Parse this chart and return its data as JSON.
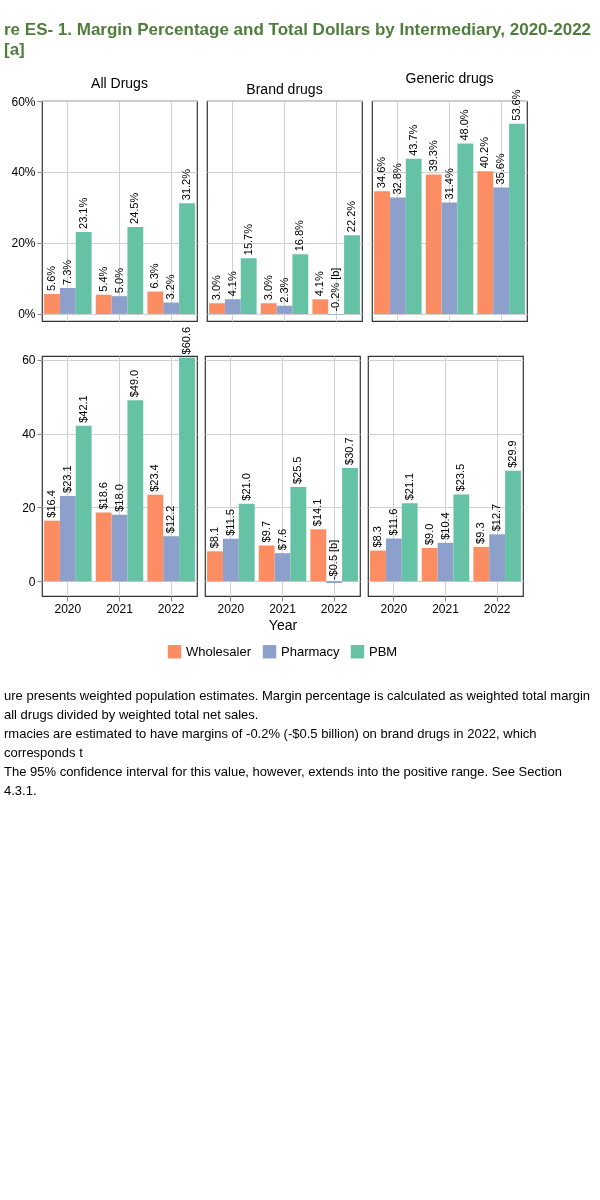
{
  "chart_data": [
    {
      "type": "bar",
      "title": "All Drugs",
      "annotations": [
        "re ES- 1. Margin Percentage and Total Dollars by Intermediary, 2020-2022 [a]"
      ],
      "categories": [
        "2020",
        "2021",
        "2022"
      ],
      "tick_labels": "y",
      "grid": true,
      "ylim": [
        -2,
        60
      ],
      "yticks": [
        {
          "value": 0,
          "label": "0%"
        },
        {
          "value": 20,
          "label": "20%"
        },
        {
          "value": 40,
          "label": "40%"
        },
        {
          "value": 60,
          "label": "60%"
        }
      ],
      "series": [
        {
          "color": "#fc8d62",
          "values": [
            5.6,
            5.4,
            6.3
          ],
          "value_labels": [
            "5.6%",
            "5.4%",
            "6.3%"
          ]
        },
        {
          "color": "#8da0cb",
          "values": [
            7.3,
            5.0,
            3.2
          ],
          "value_labels": [
            "7.3%",
            "5.0%",
            "3.2%"
          ]
        },
        {
          "color": "#66c2a5",
          "values": [
            23.1,
            24.5,
            31.2
          ],
          "value_labels": [
            "23.1%",
            "24.5%",
            "31.2%"
          ]
        }
      ]
    },
    {
      "type": "bar",
      "title": "Brand drugs",
      "categories": [
        "2020",
        "2021",
        "2022"
      ],
      "tick_labels": false,
      "grid": true,
      "ylim": [
        -2,
        60
      ],
      "yticks": [
        0,
        20,
        40,
        60
      ],
      "series": [
        {
          "color": "#fc8d62",
          "values": [
            3.0,
            3.0,
            4.1
          ],
          "value_labels": [
            "3.0%",
            "3.0%",
            "4.1%"
          ]
        },
        {
          "color": "#8da0cb",
          "values": [
            4.1,
            2.3,
            -0.2
          ],
          "value_labels": [
            "4.1%",
            "2.3%",
            "-0.2% [b]"
          ]
        },
        {
          "color": "#66c2a5",
          "values": [
            15.7,
            16.8,
            22.2
          ],
          "value_labels": [
            "15.7%",
            "16.8%",
            "22.2%"
          ]
        }
      ]
    },
    {
      "type": "bar",
      "title": "Generic drugs",
      "categories": [
        "2020",
        "2021",
        "2022"
      ],
      "tick_labels": false,
      "grid": true,
      "ylim": [
        -2,
        60
      ],
      "yticks": [
        0,
        20,
        40,
        60
      ],
      "series": [
        {
          "color": "#fc8d62",
          "values": [
            34.6,
            39.3,
            40.2
          ],
          "value_labels": [
            "34.6%",
            "39.3%",
            "40.2%"
          ]
        },
        {
          "color": "#8da0cb",
          "values": [
            32.8,
            31.4,
            35.6
          ],
          "value_labels": [
            "32.8%",
            "31.4%",
            "35.6%"
          ]
        },
        {
          "color": "#66c2a5",
          "values": [
            43.7,
            48.0,
            53.6
          ],
          "value_labels": [
            "43.7%",
            "48.0%",
            "53.6%"
          ]
        }
      ]
    },
    {
      "type": "bar",
      "categories": [
        "2020",
        "2021",
        "2022"
      ],
      "grid": true,
      "ylim": [
        -4,
        61
      ],
      "yticks": [
        0,
        20,
        40,
        60
      ],
      "series": [
        {
          "color": "#fc8d62",
          "values": [
            16.4,
            18.6,
            23.4
          ],
          "value_labels": [
            "$16.4",
            "$18.6",
            "$23.4"
          ]
        },
        {
          "color": "#8da0cb",
          "values": [
            23.1,
            18.0,
            12.2
          ],
          "value_labels": [
            "$23.1",
            "$18.0",
            "$12.2"
          ]
        },
        {
          "color": "#66c2a5",
          "values": [
            42.1,
            49.0,
            60.6
          ],
          "value_labels": [
            "$42.1",
            "$49.0",
            "$60.6"
          ]
        }
      ]
    },
    {
      "type": "bar",
      "xlabel": "Year",
      "legend": "bottom",
      "categories": [
        "2020",
        "2021",
        "2022"
      ],
      "tick_labels": "x",
      "grid": true,
      "ylim": [
        -4,
        61
      ],
      "yticks": [
        0,
        20,
        40,
        60
      ],
      "annotations": [
        "ure presents weighted population estimates. Margin percentage is calculated as weighted total margin",
        "all drugs divided by weighted total net sales.",
        "rmacies are estimated to have margins of -0.2% (-$0.5 billion) on brand drugs in 2022, which corresponds t",
        "The 95% confidence interval for this value, however, extends into the positive range. See Section 4.3.1."
      ],
      "series": [
        {
          "name": "Wholesaler",
          "color": "#fc8d62",
          "values": [
            8.1,
            9.7,
            14.1
          ],
          "value_labels": [
            "$8.1",
            "$9.7",
            "$14.1"
          ]
        },
        {
          "name": "Pharmacy",
          "color": "#8da0cb",
          "values": [
            11.5,
            7.6,
            -0.5
          ],
          "value_labels": [
            "$11.5",
            "$7.6",
            "-$0.5 [b]"
          ]
        },
        {
          "name": "PBM",
          "color": "#66c2a5",
          "values": [
            21.0,
            25.5,
            30.7
          ],
          "value_labels": [
            "$21.0",
            "$25.5",
            "$30.7"
          ]
        }
      ]
    },
    {
      "type": "bar",
      "categories": [
        "2020",
        "2021",
        "2022"
      ],
      "tick_labels": "x",
      "grid": true,
      "ylim": [
        -4,
        61
      ],
      "yticks": [
        0,
        20,
        40,
        60
      ],
      "series": [
        {
          "color": "#fc8d62",
          "values": [
            8.3,
            9.0,
            9.3
          ],
          "value_labels": [
            "$8.3",
            "$9.0",
            "$9.3"
          ]
        },
        {
          "color": "#8da0cb",
          "values": [
            11.6,
            10.4,
            12.7
          ],
          "value_labels": [
            "$11.6",
            "$10.4",
            "$12.7"
          ]
        },
        {
          "color": "#66c2a5",
          "values": [
            21.1,
            23.5,
            29.9
          ],
          "value_labels": [
            "$21.1",
            "$23.5",
            "$29.9"
          ]
        }
      ]
    }
  ]
}
